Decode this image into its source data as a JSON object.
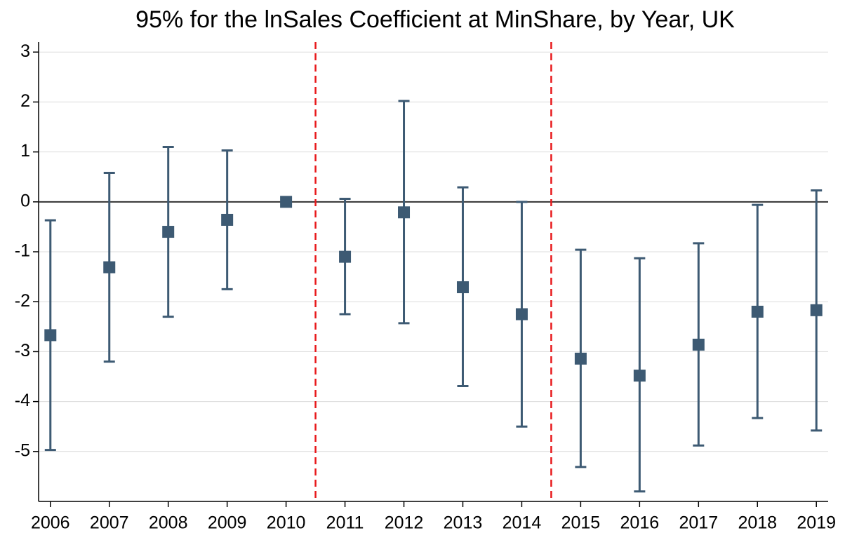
{
  "chart_data": {
    "type": "errorbar",
    "title": "95% for the lnSales Coefficient at MinShare, by Year, UK",
    "x": [
      2006,
      2007,
      2008,
      2009,
      2010,
      2011,
      2012,
      2013,
      2014,
      2015,
      2016,
      2017,
      2018,
      2019
    ],
    "series": [
      {
        "color": "#3d5a73",
        "values": [
          -2.67,
          -1.31,
          -0.6,
          -0.36,
          0,
          -1.1,
          -0.21,
          -1.71,
          -2.25,
          -3.14,
          -3.48,
          -2.86,
          -2.2,
          -2.17
        ],
        "lower": [
          -4.97,
          -3.2,
          -2.3,
          -1.75,
          null,
          -2.25,
          -2.43,
          -3.69,
          -4.5,
          -5.31,
          -5.8,
          -4.88,
          -4.33,
          -4.58
        ],
        "upper": [
          -0.37,
          0.58,
          1.1,
          1.03,
          null,
          0.06,
          2.02,
          0.29,
          0,
          -0.96,
          -1.13,
          -0.83,
          -0.06,
          0.23
        ]
      }
    ],
    "xlim": [
      2005.8,
      2019.2
    ],
    "xticks": [
      2006,
      2007,
      2008,
      2009,
      2010,
      2011,
      2012,
      2013,
      2014,
      2015,
      2016,
      2017,
      2018,
      2019
    ],
    "ylim": [
      -6,
      3.2
    ],
    "yticks": [
      3,
      2,
      1,
      0,
      -1,
      -2,
      -3,
      -4,
      -5
    ],
    "grid": true,
    "hline": 0,
    "vlines": [
      2010.5,
      2014.5
    ],
    "vline_color": "#e8191c"
  }
}
